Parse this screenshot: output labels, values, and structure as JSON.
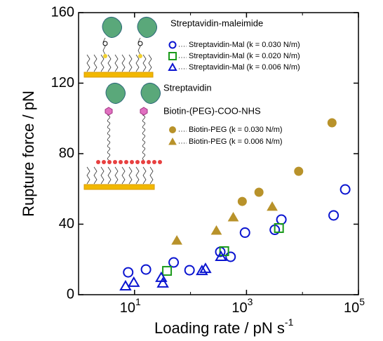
{
  "chart_data": {
    "type": "scatter",
    "xlabel": "Loading rate / pN s",
    "xlabel_sup": "-1",
    "ylabel": "Rupture force / pN",
    "xscale": "log",
    "xlim": [
      1,
      100000
    ],
    "ylim": [
      0,
      160
    ],
    "xticks": [
      {
        "value": 10,
        "label": "10",
        "exponent": "1"
      },
      {
        "value": 1000,
        "label": "10",
        "exponent": "3"
      },
      {
        "value": 100000,
        "label": "10",
        "exponent": "5"
      }
    ],
    "xminorticks": [
      1,
      100,
      10000
    ],
    "yticks": [
      0,
      40,
      80,
      120,
      160
    ],
    "annotations": [
      "Streptavidin-maleimide",
      "Streptavidin",
      "Biotin-(PEG)-COO-NHS"
    ],
    "series": [
      {
        "name": "Streptavidin-Mal (k = 0.030 N/m)",
        "marker": "circle",
        "filled": false,
        "color": "#0a14d0",
        "x": [
          7.7,
          16,
          50,
          96,
          340,
          520,
          940,
          3200,
          4200,
          36000,
          58000
        ],
        "values": [
          12.7,
          14.3,
          18.3,
          13.9,
          24.3,
          21.5,
          35.2,
          36.8,
          42.6,
          45.0,
          59.7
        ]
      },
      {
        "name": "Streptavidin-Mal (k = 0.020 N/m)",
        "marker": "square",
        "filled": false,
        "color": "#1a9a1a",
        "x": [
          38,
          400,
          3800
        ],
        "values": [
          13.5,
          24.7,
          37.8
        ]
      },
      {
        "name": "Streptavidin-Mal (k = 0.006 N/m)",
        "marker": "triangle",
        "filled": false,
        "color": "#0a14d0",
        "x": [
          6.9,
          9.7,
          30,
          32,
          160,
          185,
          350
        ],
        "values": [
          4.8,
          6.8,
          9.6,
          6.4,
          13.5,
          14.7,
          21.5
        ]
      },
      {
        "name": "Biotin-PEG (k = 0.030 N/m)",
        "marker": "circle",
        "filled": true,
        "color": "#b8922a",
        "x": [
          840,
          1670,
          8550,
          33700
        ],
        "values": [
          52.9,
          58.1,
          70.0,
          97.5
        ]
      },
      {
        "name": "Biotin-PEG (k = 0.006 N/m)",
        "marker": "triangle",
        "filled": true,
        "color": "#b8922a",
        "x": [
          57,
          290,
          580,
          2880
        ],
        "values": [
          30.6,
          36.2,
          43.8,
          49.8
        ]
      }
    ]
  }
}
